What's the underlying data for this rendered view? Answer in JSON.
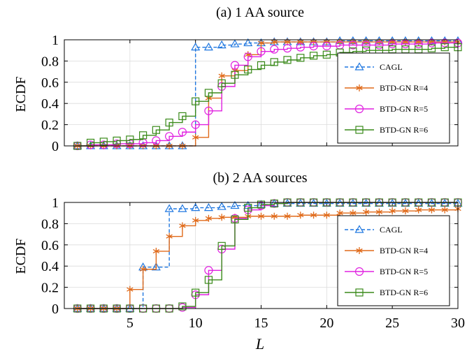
{
  "chart_data": [
    {
      "type": "line",
      "title": "(a) 1 AA source",
      "xlabel": "",
      "ylabel": "ECDF",
      "xlim": [
        0,
        30
      ],
      "ylim": [
        0,
        1
      ],
      "xticks": [
        5,
        10,
        15,
        20,
        25,
        30
      ],
      "xtick_labels_visible": false,
      "yticks": [
        0,
        0.2,
        0.4,
        0.6,
        0.8,
        1
      ],
      "ytick_labels": [
        "0",
        "0.2",
        "0.4",
        "0.6",
        "0.8",
        "1"
      ],
      "grid": true,
      "legend_position": "bottom-right",
      "step": true,
      "series": [
        {
          "name": "CAGL",
          "color": "#1f77e0",
          "marker": "triangle",
          "dash": "dashed",
          "x": [
            1,
            2,
            3,
            4,
            5,
            6,
            7,
            8,
            9,
            10,
            11,
            12,
            13,
            14,
            15,
            16,
            17,
            18,
            19,
            20,
            21,
            22,
            23,
            24,
            25,
            26,
            27,
            28,
            29,
            30
          ],
          "y": [
            0,
            0,
            0,
            0,
            0,
            0,
            0,
            0,
            0,
            0.93,
            0.93,
            0.95,
            0.96,
            0.97,
            0.97,
            0.98,
            0.98,
            0.98,
            0.98,
            0.98,
            0.99,
            0.99,
            0.99,
            0.99,
            0.99,
            0.99,
            0.99,
            0.99,
            0.99,
            0.99
          ]
        },
        {
          "name": "BTD-GN R=4",
          "color": "#e06a1a",
          "marker": "asterisk",
          "dash": "solid",
          "x": [
            1,
            2,
            3,
            4,
            5,
            6,
            7,
            8,
            9,
            10,
            11,
            12,
            13,
            14,
            15,
            16,
            17,
            18,
            19,
            20,
            21,
            22,
            23,
            24,
            25,
            26,
            27,
            28,
            29,
            30
          ],
          "y": [
            0,
            0,
            0,
            0,
            0,
            0,
            0,
            0,
            0,
            0.08,
            0.45,
            0.66,
            0.71,
            0.86,
            0.97,
            0.98,
            0.98,
            0.98,
            0.98,
            0.98,
            0.98,
            0.98,
            0.98,
            0.98,
            0.98,
            0.98,
            0.98,
            0.98,
            0.98,
            0.98
          ]
        },
        {
          "name": "BTD-GN R=5",
          "color": "#e020e0",
          "marker": "circle",
          "dash": "solid",
          "x": [
            1,
            2,
            3,
            4,
            5,
            6,
            7,
            8,
            9,
            10,
            11,
            12,
            13,
            14,
            15,
            16,
            17,
            18,
            19,
            20,
            21,
            22,
            23,
            24,
            25,
            26,
            27,
            28,
            29,
            30
          ],
          "y": [
            0,
            0.01,
            0.01,
            0.02,
            0.02,
            0.03,
            0.05,
            0.09,
            0.13,
            0.2,
            0.33,
            0.56,
            0.76,
            0.84,
            0.89,
            0.91,
            0.92,
            0.93,
            0.94,
            0.94,
            0.95,
            0.95,
            0.95,
            0.95,
            0.96,
            0.96,
            0.96,
            0.97,
            0.97,
            0.97
          ]
        },
        {
          "name": "BTD-GN R=6",
          "color": "#3a8a1a",
          "marker": "square",
          "dash": "solid",
          "x": [
            1,
            2,
            3,
            4,
            5,
            6,
            7,
            8,
            9,
            10,
            11,
            12,
            13,
            14,
            15,
            16,
            17,
            18,
            19,
            20,
            21,
            22,
            23,
            24,
            25,
            26,
            27,
            28,
            29,
            30
          ],
          "y": [
            0,
            0.03,
            0.04,
            0.05,
            0.06,
            0.1,
            0.15,
            0.22,
            0.28,
            0.42,
            0.5,
            0.59,
            0.67,
            0.72,
            0.76,
            0.79,
            0.81,
            0.83,
            0.85,
            0.86,
            0.88,
            0.89,
            0.9,
            0.9,
            0.91,
            0.91,
            0.91,
            0.92,
            0.93,
            0.93
          ]
        }
      ]
    },
    {
      "type": "line",
      "title": "(b) 2 AA sources",
      "xlabel": "L",
      "ylabel": "ECDF",
      "xlim": [
        0,
        30
      ],
      "ylim": [
        0,
        1
      ],
      "xticks": [
        5,
        10,
        15,
        20,
        25,
        30
      ],
      "xtick_labels": [
        "5",
        "10",
        "15",
        "20",
        "25",
        "30"
      ],
      "yticks": [
        0,
        0.2,
        0.4,
        0.6,
        0.8,
        1
      ],
      "ytick_labels": [
        "0",
        "0.2",
        "0.4",
        "0.6",
        "0.8",
        "1"
      ],
      "grid": true,
      "legend_position": "bottom-right",
      "step": true,
      "series": [
        {
          "name": "CAGL",
          "color": "#1f77e0",
          "marker": "triangle",
          "dash": "dashed",
          "x": [
            1,
            2,
            3,
            4,
            5,
            6,
            7,
            8,
            9,
            10,
            11,
            12,
            13,
            14,
            15,
            16,
            17,
            18,
            19,
            20,
            21,
            22,
            23,
            24,
            25,
            26,
            27,
            28,
            29,
            30
          ],
          "y": [
            0,
            0,
            0,
            0,
            0,
            0.39,
            0.39,
            0.94,
            0.94,
            0.95,
            0.95,
            0.96,
            0.97,
            0.97,
            0.98,
            0.99,
            0.99,
            0.99,
            0.99,
            0.99,
            0.99,
            0.99,
            0.99,
            0.99,
            0.99,
            0.99,
            0.99,
            0.99,
            0.99,
            0.99
          ]
        },
        {
          "name": "BTD-GN R=4",
          "color": "#e06a1a",
          "marker": "asterisk",
          "dash": "solid",
          "x": [
            1,
            2,
            3,
            4,
            5,
            6,
            7,
            8,
            9,
            10,
            11,
            12,
            13,
            14,
            15,
            16,
            17,
            18,
            19,
            20,
            21,
            22,
            23,
            24,
            25,
            26,
            27,
            28,
            29,
            30
          ],
          "y": [
            0,
            0,
            0,
            0,
            0.18,
            0.37,
            0.54,
            0.68,
            0.78,
            0.83,
            0.85,
            0.86,
            0.86,
            0.87,
            0.87,
            0.87,
            0.87,
            0.88,
            0.88,
            0.88,
            0.9,
            0.9,
            0.91,
            0.91,
            0.92,
            0.92,
            0.93,
            0.93,
            0.93,
            0.94
          ]
        },
        {
          "name": "BTD-GN R=5",
          "color": "#e020e0",
          "marker": "circle",
          "dash": "solid",
          "x": [
            1,
            2,
            3,
            4,
            5,
            6,
            7,
            8,
            9,
            10,
            11,
            12,
            13,
            14,
            15,
            16,
            17,
            18,
            19,
            20,
            21,
            22,
            23,
            24,
            25,
            26,
            27,
            28,
            29,
            30
          ],
          "y": [
            0,
            0,
            0,
            0,
            0,
            0,
            0,
            0,
            0.01,
            0.13,
            0.36,
            0.56,
            0.85,
            0.93,
            0.97,
            0.99,
            1,
            1,
            1,
            1,
            1,
            1,
            1,
            1,
            1,
            1,
            1,
            1,
            1,
            1
          ]
        },
        {
          "name": "BTD-GN R=6",
          "color": "#3a8a1a",
          "marker": "square",
          "dash": "solid",
          "x": [
            1,
            2,
            3,
            4,
            5,
            6,
            7,
            8,
            9,
            10,
            11,
            12,
            13,
            14,
            15,
            16,
            17,
            18,
            19,
            20,
            21,
            22,
            23,
            24,
            25,
            26,
            27,
            28,
            29,
            30
          ],
          "y": [
            0,
            0,
            0,
            0,
            0,
            0,
            0,
            0,
            0.02,
            0.15,
            0.27,
            0.59,
            0.84,
            0.95,
            0.98,
            0.99,
            1,
            1,
            1,
            1,
            1,
            1,
            1,
            1,
            1,
            1,
            1,
            1,
            1,
            1
          ]
        }
      ]
    }
  ]
}
